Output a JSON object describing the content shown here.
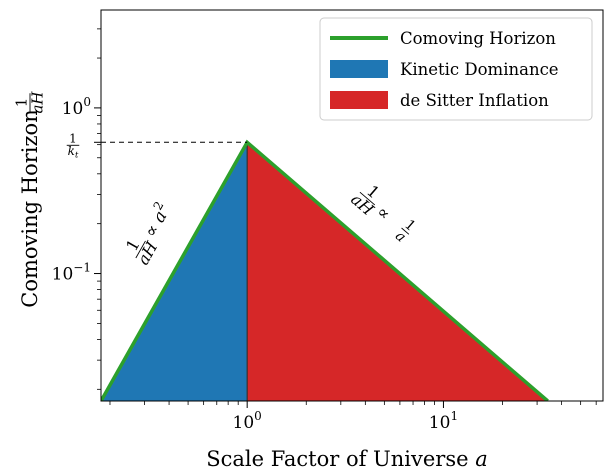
{
  "chart_data": {
    "type": "area",
    "xscale": "log",
    "yscale": "log",
    "xlim": [
      0.18,
      65
    ],
    "ylim": [
      0.017,
      3.9
    ],
    "xlabel": "Scale Factor of Universe",
    "xlabel_var": "a",
    "ylabel": "Comoving Horizon",
    "ylabel_expr": "1/aH",
    "x_ticks": [
      {
        "value": 1,
        "base": "10",
        "exp": "0"
      },
      {
        "value": 10,
        "base": "10",
        "exp": "1"
      }
    ],
    "y_ticks": [
      {
        "value": 1,
        "base": "10",
        "exp": "0"
      },
      {
        "value": 0.1,
        "base": "10",
        "exp": "−1"
      }
    ],
    "marked_value": {
      "y": 0.62,
      "label_num": "1",
      "label_den": "k",
      "label_den_sub": "t"
    },
    "series": [
      {
        "name": "Comoving Horizon",
        "kind": "line",
        "color": "#2ca02c",
        "x": [
          0.18,
          1,
          34
        ],
        "y": [
          0.017,
          0.62,
          0.017
        ]
      },
      {
        "name": "Kinetic Dominance",
        "kind": "fill",
        "color": "#1f77b4",
        "x": [
          0.18,
          1
        ],
        "y": [
          0.017,
          0.62
        ]
      },
      {
        "name": "de Sitter Inflation",
        "kind": "fill",
        "color": "#d62728",
        "x": [
          1,
          34
        ],
        "y": [
          0.62,
          0.017
        ]
      }
    ],
    "annotations": [
      {
        "num": "1",
        "den": "aH",
        "rel": "∝",
        "rhs": "a",
        "rhs_exp": "2"
      },
      {
        "num": "1",
        "den": "aH",
        "rel": "∝",
        "rhs_num": "1",
        "rhs_den": "a"
      }
    ],
    "legend_position": "top-right"
  }
}
